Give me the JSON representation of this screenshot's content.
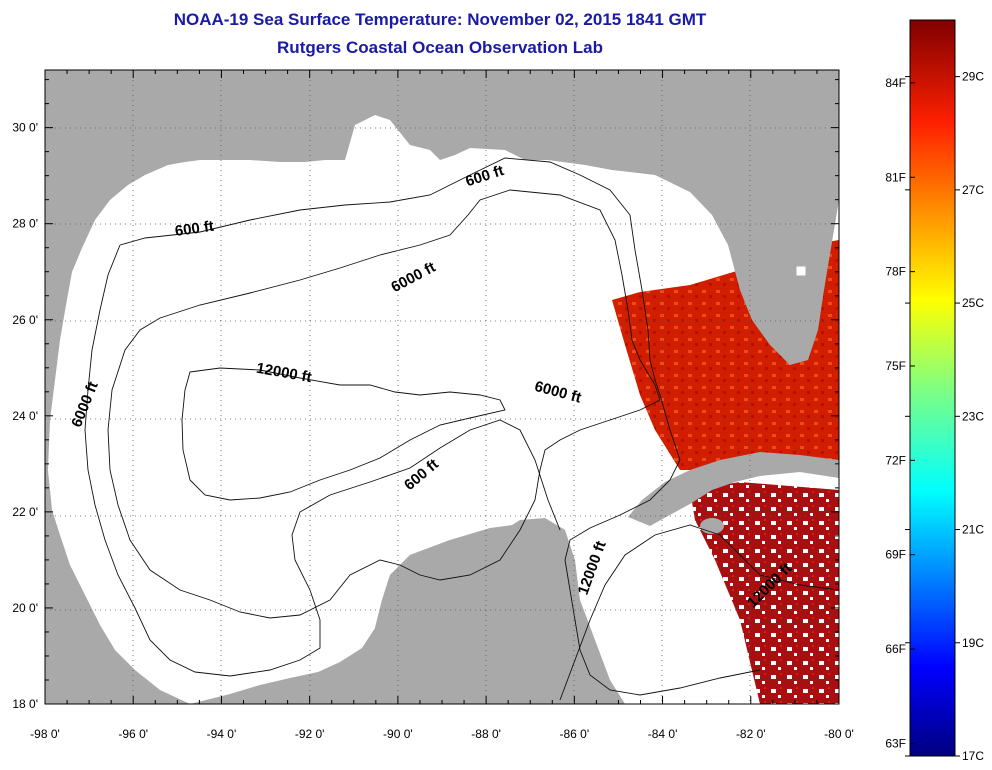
{
  "header": {
    "title": "NOAA-19 Sea Surface Temperature:  November 02, 2015 1841 GMT",
    "subtitle": "Rutgers Coastal Ocean Observation Lab"
  },
  "axes": {
    "lon_labels": [
      "-98 0'",
      "-96 0'",
      "-94 0'",
      "-92 0'",
      "-90 0'",
      "-88 0'",
      "-86 0'",
      "-84 0'",
      "-82 0'",
      "-80 0'"
    ],
    "lat_labels": [
      "18 0'",
      "20 0'",
      "22 0'",
      "24 0'",
      "26 0'",
      "28 0'",
      "30 0'"
    ],
    "lon_range": [
      -98,
      -80
    ],
    "lat_range": [
      18,
      31.2
    ]
  },
  "contours": [
    {
      "label": "600 ft",
      "lon": -94.6,
      "lat": 27.8
    },
    {
      "label": "600 ft",
      "lon": -88.0,
      "lat": 28.9
    },
    {
      "label": "6000 ft",
      "lon": -89.6,
      "lat": 26.8
    },
    {
      "label": "12000 ft",
      "lon": -92.6,
      "lat": 24.8
    },
    {
      "label": "6000 ft",
      "lon": -86.4,
      "lat": 24.4
    },
    {
      "label": "6000 ft",
      "lon": -97.0,
      "lat": 24.2
    },
    {
      "label": "600 ft",
      "lon": -89.4,
      "lat": 22.7
    },
    {
      "label": "12000 ft",
      "lon": -85.5,
      "lat": 20.8
    },
    {
      "label": "12000 ft",
      "lon": -81.5,
      "lat": 20.4
    }
  ],
  "colorbar": {
    "fahrenheit": [
      "84F",
      "81F",
      "78F",
      "75F",
      "72F",
      "69F",
      "66F",
      "63F"
    ],
    "celsius": [
      "29C",
      "27C",
      "25C",
      "23C",
      "21C",
      "19C",
      "17C"
    ],
    "min_c": 17,
    "max_c": 30
  },
  "colors": {
    "land": "#a9a9a9",
    "title": "#1a1aa6",
    "warm": "#cc1a00",
    "hot": "#a30d0d"
  }
}
